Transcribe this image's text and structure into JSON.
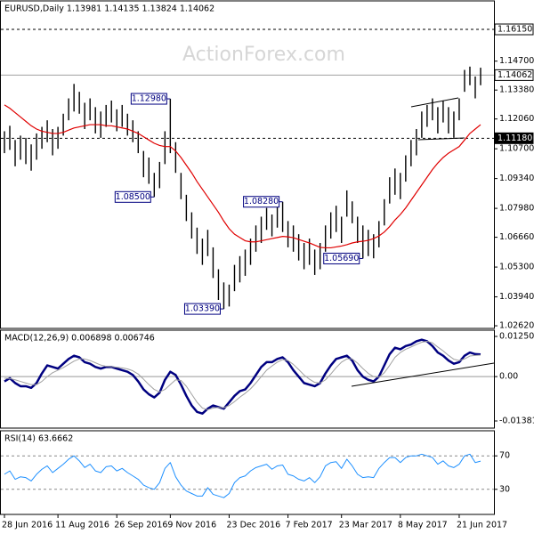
{
  "watermark": "ActionForex.com",
  "chart_data": [
    {
      "type": "ohlc",
      "title": "EURUSD,Daily  1.13981 1.14135 1.13824 1.14062",
      "categories": [
        "28 Jun 2016",
        null,
        null,
        null,
        null,
        null,
        null,
        null,
        null,
        null,
        "11 Aug 2016",
        null,
        null,
        null,
        null,
        null,
        null,
        null,
        null,
        null,
        null,
        "26 Sep 2016",
        null,
        null,
        null,
        null,
        null,
        null,
        null,
        null,
        null,
        "9 Nov 2016",
        null,
        null,
        null,
        null,
        null,
        null,
        null,
        null,
        null,
        null,
        "23 Dec 2016",
        null,
        null,
        null,
        null,
        null,
        null,
        null,
        null,
        null,
        null,
        "7 Feb 2017",
        null,
        null,
        null,
        null,
        null,
        null,
        null,
        null,
        null,
        "23 Mar 2017",
        null,
        null,
        null,
        null,
        null,
        null,
        null,
        null,
        null,
        null,
        "8 May 2017",
        null,
        null,
        null,
        null,
        null,
        null,
        null,
        null,
        null,
        null,
        "21 Jun 2017",
        null,
        null,
        null,
        null
      ],
      "high": [
        1.115,
        1.1175,
        1.111,
        1.113,
        1.112,
        1.109,
        1.114,
        1.117,
        1.12,
        1.116,
        1.117,
        1.123,
        1.13,
        1.1366,
        1.133,
        1.128,
        1.13,
        1.126,
        1.124,
        1.127,
        1.129,
        1.125,
        1.127,
        1.123,
        1.12,
        1.115,
        1.106,
        1.103,
        1.096,
        1.101,
        1.115,
        1.1298,
        1.11,
        1.096,
        1.086,
        1.078,
        1.071,
        1.066,
        1.07,
        1.062,
        1.052,
        1.046,
        1.045,
        1.054,
        1.058,
        1.061,
        1.066,
        1.072,
        1.076,
        1.08,
        1.077,
        1.081,
        1.0828,
        1.074,
        1.072,
        1.068,
        1.064,
        1.066,
        1.061,
        1.064,
        1.072,
        1.078,
        1.081,
        1.076,
        1.088,
        1.083,
        1.076,
        1.072,
        1.07,
        1.068,
        1.074,
        1.084,
        1.094,
        1.098,
        1.096,
        1.104,
        1.111,
        1.116,
        1.124,
        1.127,
        1.13,
        1.126,
        1.129,
        1.126,
        1.124,
        1.13,
        1.143,
        1.1445,
        1.14,
        1.144
      ],
      "low": [
        1.105,
        1.1065,
        1.099,
        1.102,
        1.1,
        1.097,
        1.102,
        1.107,
        1.11,
        1.104,
        1.107,
        1.113,
        1.12,
        1.124,
        1.123,
        1.116,
        1.12,
        1.114,
        1.112,
        1.117,
        1.119,
        1.115,
        1.117,
        1.113,
        1.11,
        1.105,
        1.094,
        1.091,
        1.085,
        1.089,
        1.1,
        1.105,
        1.096,
        1.084,
        1.074,
        1.066,
        1.059,
        1.054,
        1.058,
        1.048,
        1.038,
        1.0339,
        1.035,
        1.042,
        1.046,
        1.049,
        1.054,
        1.06,
        1.064,
        1.07,
        1.067,
        1.071,
        1.069,
        1.062,
        1.06,
        1.056,
        1.052,
        1.054,
        1.0494,
        1.052,
        1.06,
        1.066,
        1.069,
        1.064,
        1.076,
        1.073,
        1.064,
        1.0569,
        1.058,
        1.057,
        1.062,
        1.072,
        1.082,
        1.086,
        1.084,
        1.092,
        1.099,
        1.104,
        1.112,
        1.117,
        1.12,
        1.114,
        1.119,
        1.114,
        1.112,
        1.12,
        1.133,
        1.136,
        1.13,
        1.136
      ],
      "color": "#000000",
      "ma": {
        "color": "#e00000",
        "values": [
          1.127,
          1.1255,
          1.1235,
          1.1215,
          1.1195,
          1.1175,
          1.116,
          1.115,
          1.1145,
          1.114,
          1.114,
          1.1145,
          1.1155,
          1.1165,
          1.117,
          1.1175,
          1.118,
          1.118,
          1.118,
          1.1175,
          1.1175,
          1.117,
          1.1165,
          1.116,
          1.115,
          1.114,
          1.1125,
          1.111,
          1.1095,
          1.1085,
          1.108,
          1.108,
          1.106,
          1.103,
          1.0995,
          1.096,
          1.092,
          1.0885,
          1.085,
          1.0815,
          1.078,
          1.074,
          1.0705,
          1.068,
          1.0665,
          1.065,
          1.0645,
          1.0645,
          1.065,
          1.0655,
          1.066,
          1.0665,
          1.067,
          1.0668,
          1.0664,
          1.0656,
          1.0648,
          1.064,
          1.063,
          1.062,
          1.0618,
          1.0618,
          1.0622,
          1.0626,
          1.0632,
          1.064,
          1.0645,
          1.0648,
          1.0652,
          1.066,
          1.0672,
          1.069,
          1.0715,
          1.0745,
          1.077,
          1.08,
          1.0835,
          1.087,
          1.0905,
          1.094,
          1.0975,
          1.1005,
          1.103,
          1.105,
          1.1065,
          1.108,
          1.111,
          1.114,
          1.116,
          1.118
        ]
      },
      "ylim": [
        1.025,
        1.1745
      ],
      "yticks": [
        {
          "value": 1.147,
          "label": "1.14700"
        },
        {
          "value": 1.1338,
          "label": "1.13380"
        },
        {
          "value": 1.1206,
          "label": "1.12060"
        },
        {
          "value": 1.107,
          "label": "1.10700"
        },
        {
          "value": 1.0934,
          "label": "1.09340"
        },
        {
          "value": 1.0798,
          "label": "1.07980"
        },
        {
          "value": 1.0666,
          "label": "1.06660"
        },
        {
          "value": 1.053,
          "label": "1.05300"
        },
        {
          "value": 1.0394,
          "label": "1.03940"
        },
        {
          "value": 1.0262,
          "label": "1.02620"
        }
      ],
      "price_lines": [
        {
          "value": 1.1615,
          "label": "1.16150",
          "style": "dashed",
          "color": "#000000",
          "box": "#ffffff",
          "text_color": "#000000"
        },
        {
          "value": 1.14062,
          "label": "1.14062",
          "style": "solid",
          "color": "#a0a0a0",
          "box": "#ffffff",
          "text_color": "#000000"
        },
        {
          "value": 1.1118,
          "label": "1.11180",
          "style": "dashed",
          "color": "#000000",
          "box": "#000000",
          "text_color": "#ffffff"
        }
      ],
      "annotations": [
        {
          "value": 1.1298,
          "label": "1.12980"
        },
        {
          "value": 1.085,
          "label": "1.08500"
        },
        {
          "value": 1.0828,
          "label": "1.08280"
        },
        {
          "value": 1.0569,
          "label": "1.05690"
        },
        {
          "value": 1.0339,
          "label": "1.03390"
        }
      ]
    },
    {
      "type": "line",
      "title": "MACD(12,26,9) 0.006898 0.006746",
      "series": [
        {
          "color": "#000080",
          "width": 2.5,
          "values": [
            -0.0015,
            -0.0005,
            -0.002,
            -0.003,
            -0.003,
            -0.0035,
            -0.002,
            0.001,
            0.0035,
            0.003,
            0.0025,
            0.004,
            0.0055,
            0.0065,
            0.006,
            0.0045,
            0.004,
            0.003,
            0.0025,
            0.003,
            0.003,
            0.0025,
            0.002,
            0.0015,
            0.0005,
            -0.0015,
            -0.004,
            -0.0055,
            -0.0065,
            -0.005,
            -0.001,
            0.0015,
            0.0005,
            -0.0025,
            -0.006,
            -0.009,
            -0.011,
            -0.0115,
            -0.01,
            -0.009,
            -0.0095,
            -0.01,
            -0.008,
            -0.006,
            -0.0045,
            -0.004,
            -0.002,
            0.0005,
            0.003,
            0.0045,
            0.0045,
            0.0055,
            0.006,
            0.0045,
            0.002,
            0.0,
            -0.002,
            -0.0025,
            -0.003,
            -0.002,
            0.001,
            0.0035,
            0.0055,
            0.006,
            0.0065,
            0.005,
            0.002,
            0.0,
            -0.001,
            -0.0015,
            0.0,
            0.0035,
            0.007,
            0.009,
            0.0085,
            0.0095,
            0.01,
            0.011,
            0.0115,
            0.011,
            0.0095,
            0.0075,
            0.0065,
            0.005,
            0.004,
            0.0045,
            0.0065,
            0.0075,
            0.007,
            0.0069
          ]
        },
        {
          "color": "#a0a0a0",
          "width": 1,
          "values": [
            -0.0005,
            -0.0006,
            -0.001,
            -0.0015,
            -0.002,
            -0.0025,
            -0.0025,
            -0.0015,
            0.0,
            0.0012,
            0.002,
            0.0028,
            0.0038,
            0.0048,
            0.0055,
            0.0055,
            0.005,
            0.0043,
            0.0036,
            0.0032,
            0.0031,
            0.0029,
            0.0027,
            0.0024,
            0.0018,
            0.0008,
            -0.0008,
            -0.0025,
            -0.004,
            -0.0048,
            -0.004,
            -0.0025,
            -0.001,
            -0.0012,
            -0.003,
            -0.0055,
            -0.008,
            -0.0098,
            -0.0103,
            -0.0098,
            -0.0096,
            -0.0097,
            -0.009,
            -0.0078,
            -0.0064,
            -0.0052,
            -0.0038,
            -0.002,
            0.0,
            0.002,
            0.0033,
            0.0045,
            0.0053,
            0.005,
            0.0038,
            0.0022,
            0.0005,
            -0.0008,
            -0.0018,
            -0.002,
            -0.001,
            0.0008,
            0.0028,
            0.0045,
            0.0055,
            0.0055,
            0.0042,
            0.0025,
            0.001,
            0.0,
            -0.0002,
            0.0012,
            0.0035,
            0.006,
            0.0075,
            0.0085,
            0.0092,
            0.01,
            0.0107,
            0.011,
            0.0105,
            0.0092,
            0.008,
            0.0066,
            0.0054,
            0.005,
            0.0055,
            0.0064,
            0.0066,
            0.0067
          ]
        }
      ],
      "ylim": [
        -0.01603,
        0.01445
      ],
      "yticks": [
        0.012509,
        {
          "value": 0,
          "label": "0.00"
        },
        -0.013813
      ],
      "zero_line": true
    },
    {
      "type": "line",
      "title": "RSI(14) 63.6662",
      "series": [
        {
          "color": "#1e90ff",
          "width": 1,
          "values": [
            48,
            52,
            42,
            45,
            44,
            40,
            48,
            54,
            58,
            50,
            55,
            60,
            66,
            70,
            64,
            56,
            60,
            52,
            50,
            57,
            58,
            52,
            55,
            50,
            46,
            42,
            35,
            32,
            30,
            38,
            55,
            62,
            45,
            35,
            28,
            25,
            22,
            22,
            32,
            24,
            22,
            20,
            25,
            38,
            44,
            46,
            52,
            56,
            58,
            60,
            54,
            58,
            59,
            48,
            46,
            42,
            40,
            44,
            38,
            45,
            58,
            62,
            63,
            55,
            66,
            58,
            48,
            44,
            45,
            44,
            55,
            62,
            68,
            68,
            62,
            68,
            70,
            70,
            72,
            70,
            68,
            60,
            64,
            58,
            56,
            60,
            70,
            72,
            62,
            63.6662
          ]
        }
      ],
      "ylim": [
        0,
        100
      ],
      "yticks": [
        70,
        30
      ],
      "grid": true
    }
  ]
}
